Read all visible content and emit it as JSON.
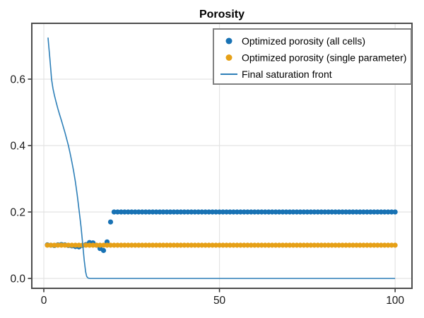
{
  "figure": {
    "title": "Porosity"
  },
  "chart_data": {
    "type": "scatter",
    "title": "Porosity",
    "xlabel": "",
    "ylabel": "",
    "xlim": [
      -3.42,
      104.8
    ],
    "ylim": [
      -0.0298,
      0.768
    ],
    "x_ticks": [
      0,
      50,
      100
    ],
    "x_tick_labels": [
      "0",
      "50",
      "100"
    ],
    "y_ticks": [
      0.0,
      0.2,
      0.4,
      0.6
    ],
    "y_tick_labels": [
      "0.0",
      "0.2",
      "0.4",
      "0.6"
    ],
    "grid": true,
    "legend_position": "top-right",
    "series": [
      {
        "name": "Optimized porosity (all cells)",
        "type": "scatter",
        "color": "#1872b4",
        "marker_radius": 3.6,
        "x_start": 1,
        "x_step": 1,
        "values": [
          0.101,
          0.1,
          0.099,
          0.101,
          0.102,
          0.101,
          0.099,
          0.098,
          0.096,
          0.095,
          0.099,
          0.102,
          0.108,
          0.107,
          0.1,
          0.09,
          0.084,
          0.11,
          0.17,
          0.2,
          0.2,
          0.2,
          0.2,
          0.2,
          0.2,
          0.2,
          0.2,
          0.2,
          0.2,
          0.2,
          0.2,
          0.2,
          0.2,
          0.2,
          0.2,
          0.2,
          0.2,
          0.2,
          0.2,
          0.2,
          0.2,
          0.2,
          0.2,
          0.2,
          0.2,
          0.2,
          0.2,
          0.2,
          0.2,
          0.2,
          0.2,
          0.2,
          0.2,
          0.2,
          0.2,
          0.2,
          0.2,
          0.2,
          0.2,
          0.2,
          0.2,
          0.2,
          0.2,
          0.2,
          0.2,
          0.2,
          0.2,
          0.2,
          0.2,
          0.2,
          0.2,
          0.2,
          0.2,
          0.2,
          0.2,
          0.2,
          0.2,
          0.2,
          0.2,
          0.2,
          0.2,
          0.2,
          0.2,
          0.2,
          0.2,
          0.2,
          0.2,
          0.2,
          0.2,
          0.2,
          0.2,
          0.2,
          0.2,
          0.2,
          0.2,
          0.2,
          0.2,
          0.2,
          0.2,
          0.2
        ]
      },
      {
        "name": "Optimized porosity (single parameter)",
        "type": "scatter",
        "color": "#e6a017",
        "marker_radius": 3.6,
        "x_start": 1,
        "x_step": 1,
        "constant_value": 0.1,
        "count": 100
      },
      {
        "name": "Final saturation front",
        "type": "line",
        "color": "#2d7fb8",
        "line_width": 1.6,
        "points": [
          [
            1.2,
            0.725
          ],
          [
            1.4,
            0.7
          ],
          [
            1.7,
            0.665
          ],
          [
            2.0,
            0.627
          ],
          [
            2.2,
            0.6
          ],
          [
            2.6,
            0.572
          ],
          [
            3.0,
            0.552
          ],
          [
            3.5,
            0.531
          ],
          [
            4.0,
            0.511
          ],
          [
            4.5,
            0.493
          ],
          [
            5.0,
            0.476
          ],
          [
            5.5,
            0.458
          ],
          [
            6.0,
            0.44
          ],
          [
            6.5,
            0.42
          ],
          [
            7.0,
            0.4
          ],
          [
            7.5,
            0.376
          ],
          [
            8.0,
            0.35
          ],
          [
            8.5,
            0.322
          ],
          [
            9.0,
            0.29
          ],
          [
            9.5,
            0.252
          ],
          [
            10.1,
            0.2
          ],
          [
            10.6,
            0.155
          ],
          [
            11.1,
            0.1
          ],
          [
            11.5,
            0.055
          ],
          [
            11.9,
            0.02
          ],
          [
            12.2,
            0.006
          ],
          [
            12.6,
            0.001
          ],
          [
            13.2,
            0.0
          ],
          [
            100.0,
            0.0
          ]
        ]
      }
    ]
  },
  "legend": {
    "entries": [
      {
        "label": "Optimized porosity (all cells)",
        "marker": "dot",
        "color": "#1872b4"
      },
      {
        "label": "Optimized porosity (single parameter)",
        "marker": "dot",
        "color": "#e6a017"
      },
      {
        "label": "Final saturation front",
        "marker": "line",
        "color": "#2d7fb8"
      }
    ]
  },
  "colors": {
    "background": "#ffffff",
    "frame": "#4d4d4d",
    "grid": "#e4e4e4",
    "tick": "#2b2b2b",
    "text": "#1a1a1a",
    "legend_border": "#808080"
  }
}
